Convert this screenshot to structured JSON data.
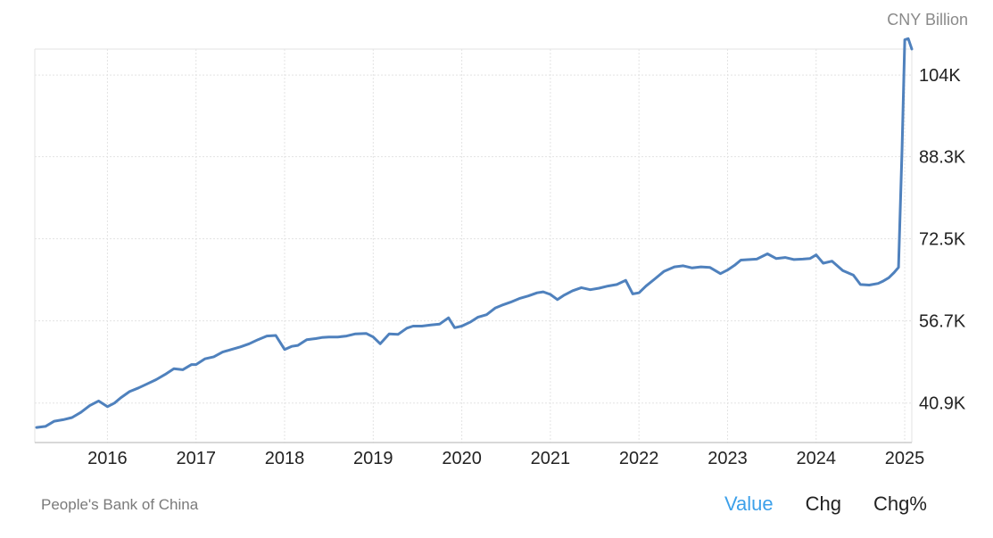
{
  "unit_label": "CNY Billion",
  "source": "People's Bank of China",
  "tabs": [
    {
      "label": "Value",
      "active": true
    },
    {
      "label": "Chg",
      "active": false
    },
    {
      "label": "Chg%",
      "active": false
    }
  ],
  "colors": {
    "line": "#4f81bd",
    "grid": "#e3e3e3",
    "tab_active": "#3ca0ea"
  },
  "chart_data": {
    "type": "line",
    "title": "",
    "xlabel": "",
    "ylabel": "CNY Billion",
    "grid": true,
    "xlim": [
      2015.18,
      2025.08
    ],
    "ylim": [
      33300,
      109000
    ],
    "y_ticks": [
      40900,
      56700,
      72500,
      88300,
      104000
    ],
    "y_tick_labels": [
      "40.9K",
      "56.7K",
      "72.5K",
      "88.3K",
      "104K"
    ],
    "x_ticks": [
      2016,
      2017,
      2018,
      2019,
      2020,
      2021,
      2022,
      2023,
      2024,
      2025
    ],
    "x_tick_labels": [
      "2016",
      "2017",
      "2018",
      "2019",
      "2020",
      "2021",
      "2022",
      "2023",
      "2024",
      "2025"
    ],
    "series": [
      {
        "name": "",
        "x": [
          2015.2,
          2015.3,
          2015.4,
          2015.5,
          2015.6,
          2015.7,
          2015.8,
          2015.9,
          2016.0,
          2016.08,
          2016.15,
          2016.25,
          2016.35,
          2016.45,
          2016.55,
          2016.65,
          2016.75,
          2016.85,
          2016.95,
          2017.0,
          2017.1,
          2017.2,
          2017.3,
          2017.4,
          2017.5,
          2017.6,
          2017.7,
          2017.8,
          2017.9,
          2018.0,
          2018.08,
          2018.15,
          2018.25,
          2018.35,
          2018.42,
          2018.5,
          2018.6,
          2018.7,
          2018.8,
          2018.92,
          2019.0,
          2019.08,
          2019.18,
          2019.28,
          2019.38,
          2019.45,
          2019.55,
          2019.65,
          2019.75,
          2019.85,
          2019.92,
          2020.0,
          2020.1,
          2020.18,
          2020.28,
          2020.38,
          2020.45,
          2020.55,
          2020.65,
          2020.75,
          2020.85,
          2020.92,
          2021.0,
          2021.08,
          2021.15,
          2021.25,
          2021.35,
          2021.45,
          2021.55,
          2021.65,
          2021.75,
          2021.85,
          2021.93,
          2022.0,
          2022.08,
          2022.18,
          2022.28,
          2022.4,
          2022.5,
          2022.6,
          2022.7,
          2022.8,
          2022.92,
          2023.0,
          2023.08,
          2023.15,
          2023.25,
          2023.33,
          2023.45,
          2023.55,
          2023.65,
          2023.75,
          2023.85,
          2023.93,
          2024.0,
          2024.08,
          2024.18,
          2024.3,
          2024.42,
          2024.5,
          2024.6,
          2024.7,
          2024.75,
          2024.82,
          2024.88,
          2024.93,
          2024.97,
          2025.0,
          2025.04,
          2025.08
        ],
        "values": [
          36200,
          36400,
          37400,
          37700,
          38100,
          39100,
          40400,
          41300,
          40200,
          40900,
          41900,
          43100,
          43800,
          44600,
          45400,
          46400,
          47500,
          47300,
          48300,
          48300,
          49400,
          49800,
          50700,
          51200,
          51700,
          52300,
          53100,
          53800,
          53900,
          51200,
          51800,
          52000,
          53100,
          53300,
          53500,
          53600,
          53600,
          53800,
          54200,
          54300,
          53600,
          52300,
          54200,
          54100,
          55300,
          55700,
          55700,
          55900,
          56100,
          57300,
          55400,
          55700,
          56500,
          57400,
          57900,
          59200,
          59700,
          60300,
          61000,
          61500,
          62100,
          62300,
          61800,
          60800,
          61600,
          62500,
          63100,
          62700,
          63000,
          63400,
          63700,
          64500,
          61900,
          62100,
          63400,
          64800,
          66200,
          67100,
          67300,
          66900,
          67100,
          67000,
          65800,
          66500,
          67400,
          68400,
          68500,
          68600,
          69600,
          68700,
          68900,
          68500,
          68600,
          68700,
          69400,
          67800,
          68200,
          66400,
          65500,
          63700,
          63600,
          63900,
          64300,
          65000,
          66000,
          67000,
          90000,
          110800,
          111000,
          109000
        ]
      }
    ]
  }
}
